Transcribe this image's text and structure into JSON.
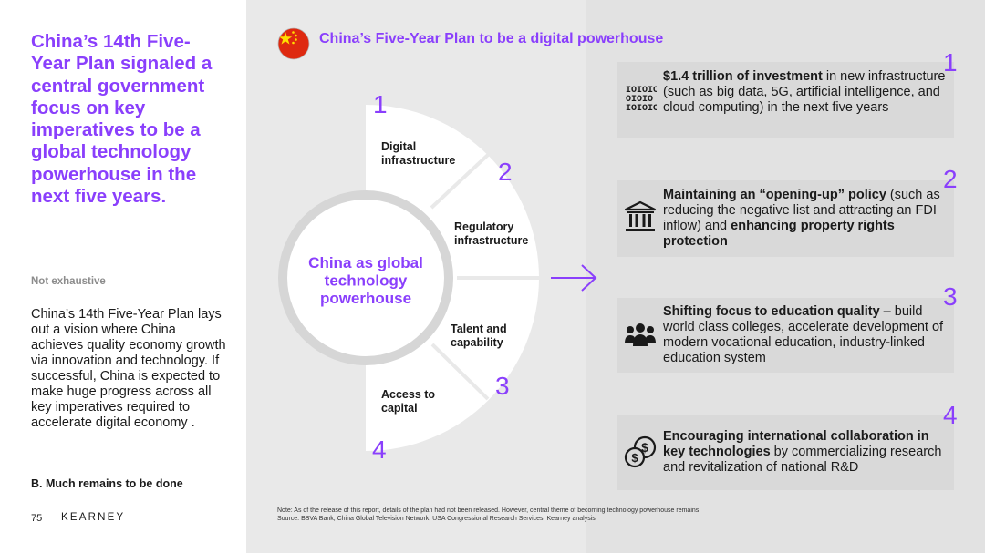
{
  "headline": "China’s 14th Five-Year Plan signaled a central government focus on key imperatives to be a global technology powerhouse in the next five years.",
  "not_exhaustive": "Not exhaustive",
  "body": "China’s 14th Five-Year Plan lays out a vision where China achieves quality economy growth via innovation and technology. If successful, China is expected to make huge progress across all key imperatives required to accelerate digital economy .",
  "section_note": "B. Much remains to be done",
  "page_number": "75",
  "brand": "KEARNEY",
  "diagram": {
    "title": "China’s Five-Year Plan to be a digital powerhouse",
    "center": [
      "China as global",
      "technology",
      "powerhouse"
    ],
    "segments": [
      {
        "number": "1",
        "label": [
          "Digital",
          "infrastructure"
        ]
      },
      {
        "number": "2",
        "label": [
          "Regulatory",
          "infrastructure"
        ]
      },
      {
        "number": "3",
        "label": [
          "Talent and",
          "capability"
        ]
      },
      {
        "number": "4",
        "label": [
          "Access to",
          "capital"
        ]
      }
    ]
  },
  "cards": [
    {
      "number": "1",
      "icon": "binary-data-icon",
      "bold1": "$1.4 trillion of investment",
      "text1": " in new infrastructure (such as big data, 5G, artificial intelligence, and cloud computing) in the next five years",
      "bold2": "",
      "text2": ""
    },
    {
      "number": "2",
      "icon": "bank-building-icon",
      "bold1": "Maintaining an “opening-up” policy",
      "text1": " (such as reducing the negative list and attracting an FDI inflow) and ",
      "bold2": "enhancing property rights protection",
      "text2": ""
    },
    {
      "number": "3",
      "icon": "people-group-icon",
      "bold1": "Shifting focus to education quality",
      "text1": " – build world class colleges, accelerate development of modern vocational education, industry-linked education system",
      "bold2": "",
      "text2": ""
    },
    {
      "number": "4",
      "icon": "coins-dollar-icon",
      "bold1": "Encouraging international collaboration in key technologies",
      "text1": " by commercializing research and  revitalization of national R&D",
      "bold2": "",
      "text2": ""
    }
  ],
  "note": "Note: As of the release of this report, details of the plan had not been released. However, central theme of becoming technology powerhouse remains",
  "source": "Source: BBVA Bank, China Global Television Network, USA Congressional Research Services; Kearney analysis",
  "colors": {
    "accent": "#8a3ffc",
    "flag_red": "#de2910",
    "flag_yellow": "#ffde00"
  }
}
